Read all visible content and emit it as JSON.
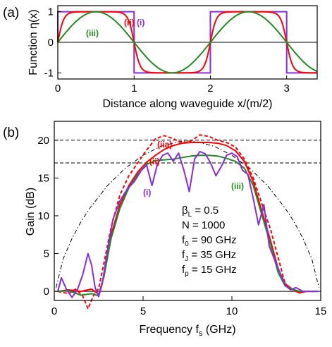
{
  "chart_data": [
    {
      "panel": "(a)",
      "type": "line",
      "xlabel": "Distance along waveguide  x/(m/2)",
      "ylabel": "Function η(x)",
      "xlim": [
        0,
        3.4
      ],
      "ylim": [
        -1.2,
        1.2
      ],
      "xticks": [
        "0",
        "1",
        "2",
        "3"
      ],
      "yticks": [
        "-1",
        "0",
        "1"
      ],
      "labels": {
        "i": "(i)",
        "ii": "(ii)",
        "iii": "(iii)"
      },
      "series": [
        {
          "key": "i",
          "color": "#8a2be2",
          "shape": "square wave",
          "period": 2,
          "amplitude": 1
        },
        {
          "key": "ii",
          "color": "#ff0000",
          "shape": "rounded square wave",
          "period": 2,
          "amplitude": 1
        },
        {
          "key": "iii",
          "color": "#228b22",
          "shape": "sine",
          "period": 2,
          "amplitude": 1
        }
      ],
      "reference_lines": [
        0
      ]
    },
    {
      "panel": "(b)",
      "type": "line",
      "xlabel": "Frequency  f",
      "xlabel_sub": "s",
      "xlabel_unit": " (GHz)",
      "ylabel": "Gain (dB)",
      "xlim": [
        0,
        15
      ],
      "ylim": [
        -1.2,
        22.5
      ],
      "xticks": [
        "0",
        "5",
        "10",
        "15"
      ],
      "yticks": [
        "0",
        "5",
        "10",
        "15",
        "20"
      ],
      "labels": {
        "i": "(i)",
        "ii": "(ii)",
        "iia": "(iia)",
        "iii": "(iii)"
      },
      "dashed_hlines": [
        20,
        17
      ],
      "params": [
        {
          "main": "β",
          "sub": "L",
          "rest": " = 0.5"
        },
        {
          "main": "N = 1000",
          "sub": "",
          "rest": ""
        },
        {
          "main": "f",
          "sub": "0",
          "rest": " = 90 GHz"
        },
        {
          "main": "f",
          "sub": "J",
          "rest": " = 35 GHz"
        },
        {
          "main": "f",
          "sub": "p",
          "rest": " = 15 GHz"
        }
      ],
      "series": [
        {
          "key": "envelope",
          "color": "#000000",
          "style": "dash-dot",
          "x": [
            0.1,
            0.5,
            1,
            1.5,
            2,
            3,
            4,
            5,
            6,
            7,
            7.5,
            8,
            9,
            10,
            11,
            12,
            13,
            13.5,
            14,
            14.5,
            14.9
          ],
          "y": [
            0.5,
            4.3,
            7.0,
            9.2,
            11.0,
            14.0,
            16.3,
            18.0,
            19.2,
            19.8,
            19.9,
            19.8,
            19.2,
            18.0,
            16.3,
            14.0,
            11.0,
            9.2,
            7.0,
            4.3,
            0.5
          ]
        },
        {
          "key": "iia",
          "color": "#ff0000",
          "style": "dashed",
          "x": [
            0.2,
            0.8,
            1.2,
            1.6,
            1.9,
            2.2,
            2.5,
            2.8,
            3.2,
            3.7,
            4.2,
            4.7,
            5.2,
            5.7,
            6.2,
            6.7,
            7.2,
            7.7,
            8.2,
            8.7,
            9.2,
            9.7,
            10.2,
            10.7,
            11.2,
            11.7,
            12.2,
            12.6,
            13.0,
            13.4,
            13.8,
            14.2,
            14.8
          ],
          "y": [
            0,
            -0.3,
            0.3,
            -0.6,
            -2.3,
            -0.6,
            0.4,
            3.8,
            8.5,
            12.8,
            15.3,
            17.0,
            18.7,
            20.2,
            20.6,
            20.2,
            19.6,
            19.9,
            20.7,
            20.5,
            20.0,
            19.7,
            19.1,
            17.5,
            15.0,
            11.5,
            8.0,
            4.5,
            1.0,
            0.2,
            -0.2,
            0,
            0
          ]
        },
        {
          "key": "ii",
          "color": "#ff0000",
          "style": "solid",
          "x": [
            0.2,
            0.8,
            1.5,
            2.1,
            2.5,
            2.8,
            3.2,
            3.7,
            4.2,
            4.7,
            5.2,
            5.7,
            6.2,
            6.7,
            7.2,
            7.7,
            8.2,
            8.7,
            9.2,
            9.7,
            10.2,
            10.7,
            11.2,
            11.7,
            12.2,
            12.6,
            13.0,
            13.4,
            13.8,
            14.2,
            14.8
          ],
          "y": [
            0,
            0.2,
            0.0,
            0.3,
            -0.4,
            2.0,
            7.5,
            11.5,
            14.0,
            15.8,
            17.1,
            18.0,
            18.8,
            19.3,
            19.6,
            19.7,
            19.7,
            19.7,
            19.6,
            19.3,
            18.6,
            17.2,
            14.5,
            10.5,
            6.5,
            3.0,
            1.0,
            0.3,
            -0.2,
            0,
            0
          ]
        },
        {
          "key": "iii",
          "color": "#228b22",
          "style": "solid",
          "x": [
            0.2,
            0.8,
            1.5,
            2.1,
            2.5,
            2.8,
            3.2,
            3.7,
            4.2,
            4.7,
            5.2,
            5.7,
            6.2,
            6.7,
            7.2,
            7.7,
            8.2,
            8.7,
            9.2,
            9.7,
            10.2,
            10.7,
            11.2,
            11.7,
            12.2,
            12.6,
            13.0,
            13.4,
            13.8,
            14.2,
            14.8
          ],
          "y": [
            0,
            0.1,
            -0.5,
            -0.3,
            -0.6,
            2.0,
            7.0,
            11.0,
            13.7,
            15.5,
            16.8,
            17.3,
            17.4,
            17.5,
            17.7,
            17.9,
            18.0,
            18.0,
            17.9,
            17.6,
            17.2,
            16.3,
            14.0,
            10.0,
            6.0,
            2.5,
            0.7,
            0.3,
            0,
            0,
            0
          ]
        },
        {
          "key": "i",
          "color": "#8a2be2",
          "style": "solid",
          "x": [
            0.2,
            0.4,
            0.7,
            1.0,
            1.3,
            1.6,
            1.9,
            2.1,
            2.3,
            2.5,
            2.7,
            3.0,
            3.3,
            3.7,
            4.1,
            4.5,
            4.9,
            5.2,
            5.5,
            5.8,
            6.1,
            6.4,
            6.7,
            7.0,
            7.3,
            7.6,
            7.9,
            8.2,
            8.5,
            8.8,
            9.1,
            9.4,
            9.7,
            10.0,
            10.3,
            10.6,
            10.9,
            11.2,
            11.5,
            11.8,
            12.1,
            12.4,
            12.7,
            13.0,
            13.3,
            13.6,
            14.0,
            14.5,
            14.9
          ],
          "y": [
            0,
            1.8,
            0.2,
            -0.8,
            0.2,
            2.2,
            5.0,
            3.5,
            0.5,
            -0.7,
            1.0,
            5.5,
            9.5,
            12.0,
            13.5,
            14.5,
            16.0,
            16.7,
            14.0,
            16.8,
            18.0,
            18.3,
            17.2,
            18.3,
            16.0,
            13.2,
            17.5,
            18.5,
            18.2,
            17.0,
            15.3,
            16.5,
            18.0,
            18.3,
            17.8,
            16.0,
            15.5,
            12.3,
            8.8,
            11.5,
            6.0,
            4.2,
            2.5,
            0.8,
            0.2,
            0.5,
            0,
            0,
            0
          ]
        }
      ]
    }
  ]
}
